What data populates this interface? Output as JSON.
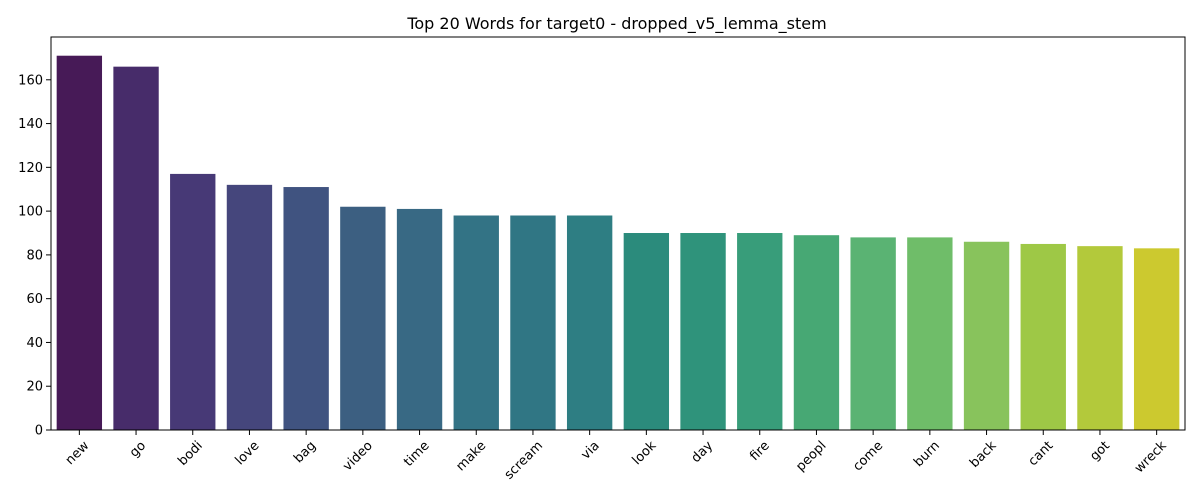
{
  "chart_data": {
    "type": "bar",
    "title": "Top 20 Words for target0 - dropped_v5_lemma_stem",
    "xlabel": "",
    "ylabel": "",
    "categories": [
      "new",
      "go",
      "bodi",
      "love",
      "bag",
      "video",
      "time",
      "make",
      "scream",
      "via",
      "look",
      "day",
      "fire",
      "peopl",
      "come",
      "burn",
      "back",
      "cant",
      "got",
      "wreck"
    ],
    "values": [
      171,
      166,
      117,
      112,
      111,
      102,
      101,
      98,
      98,
      98,
      90,
      90,
      90,
      89,
      88,
      88,
      86,
      85,
      84,
      83
    ],
    "ylim": [
      0,
      179.55
    ],
    "yticks": [
      0,
      20,
      40,
      60,
      80,
      100,
      120,
      140,
      160
    ],
    "grid": false,
    "legend": "none",
    "colormap": "viridis",
    "colors": [
      "#471a57",
      "#472c6a",
      "#473976",
      "#45467c",
      "#405380",
      "#3c5f81",
      "#386984",
      "#337385",
      "#307684",
      "#2e7e83",
      "#2b8b7c",
      "#2f937b",
      "#389d7a",
      "#47a874",
      "#5ab373",
      "#6fbd69",
      "#88c35c",
      "#9ec846",
      "#b3c93b",
      "#ccc92f"
    ]
  }
}
